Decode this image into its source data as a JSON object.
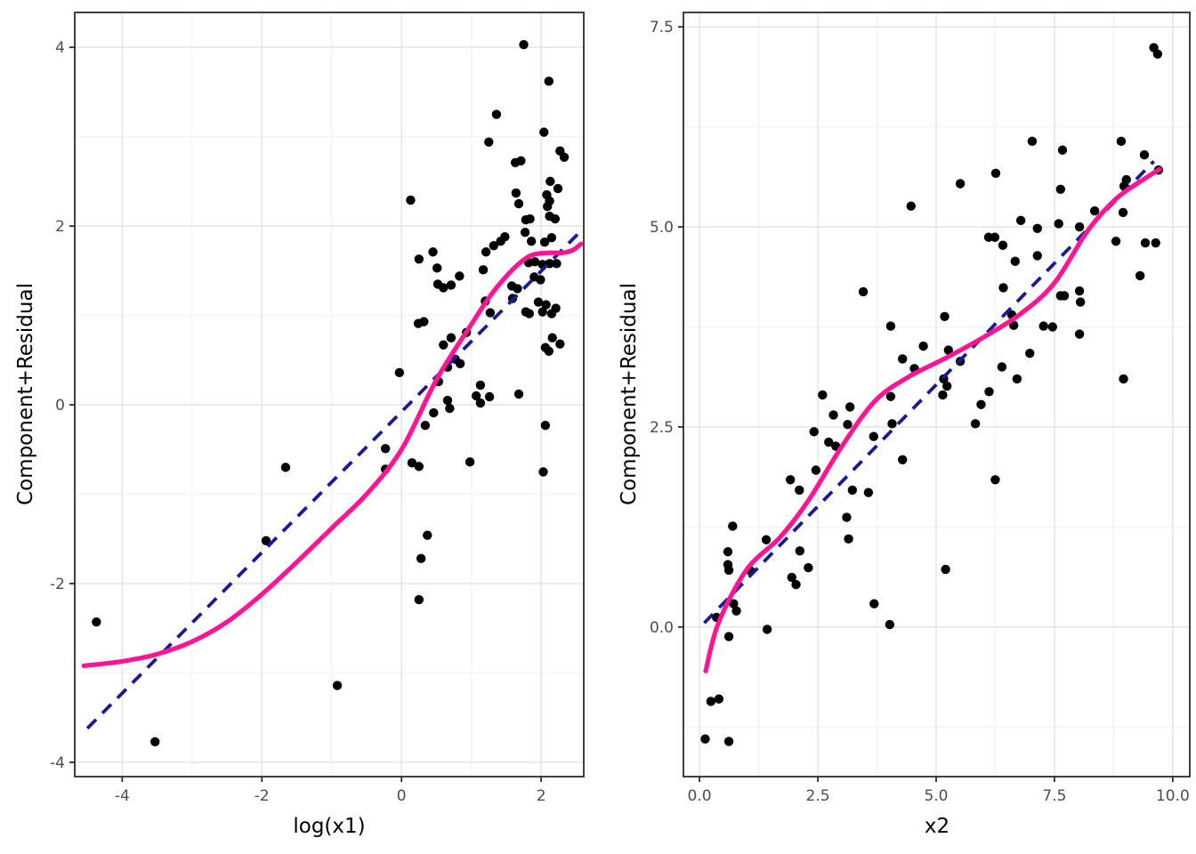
{
  "figure": {
    "background": "#FFFFFF",
    "panel_background": "#FFFFFF",
    "panel_border_color": "#2b2b2b",
    "grid_major_color": "#E4E4E4",
    "grid_minor_color": "#F2F2F2",
    "point_color": "#000000",
    "linear_line_color": "#1A1A99",
    "smooth_line_color": "#FF1493",
    "tick_mark_color": "#2b2b2b",
    "tick_label_color": "#4d4d4d",
    "axis_title_color": "#000000"
  },
  "chart_data": [
    {
      "type": "scatter",
      "title": "",
      "xlabel": "log(x1)",
      "ylabel": "Component+Residual",
      "xlim": [
        -4.68,
        2.61
      ],
      "ylim": [
        -4.16,
        4.39
      ],
      "grid": true,
      "legend_position": "none",
      "x_ticks": [
        -4,
        -2,
        0,
        2
      ],
      "x_tick_labels": [
        "-4",
        "-2",
        "0",
        "2"
      ],
      "y_ticks": [
        -4,
        -2,
        0,
        2,
        4
      ],
      "y_tick_labels": [
        "-4",
        "-2",
        "0",
        "2",
        "4"
      ],
      "series": [
        {
          "name": "partial-residual-points",
          "kind": "points",
          "points": [
            [
              1.75,
              4.03
            ],
            [
              2.11,
              3.62
            ],
            [
              1.36,
              3.25
            ],
            [
              2.04,
              3.05
            ],
            [
              1.25,
              2.94
            ],
            [
              2.27,
              2.84
            ],
            [
              2.33,
              2.77
            ],
            [
              1.71,
              2.73
            ],
            [
              1.63,
              2.71
            ],
            [
              2.13,
              2.5
            ],
            [
              2.24,
              2.42
            ],
            [
              1.64,
              2.37
            ],
            [
              2.08,
              2.35
            ],
            [
              0.13,
              2.29
            ],
            [
              2.12,
              2.28
            ],
            [
              1.68,
              2.25
            ],
            [
              2.09,
              2.22
            ],
            [
              2.12,
              2.11
            ],
            [
              1.84,
              2.08
            ],
            [
              2.2,
              2.08
            ],
            [
              1.78,
              2.07
            ],
            [
              1.77,
              1.93
            ],
            [
              1.48,
              1.88
            ],
            [
              2.15,
              1.87
            ],
            [
              1.86,
              1.83
            ],
            [
              1.42,
              1.83
            ],
            [
              2.05,
              1.82
            ],
            [
              1.32,
              1.78
            ],
            [
              1.21,
              1.71
            ],
            [
              0.45,
              1.71
            ],
            [
              0.25,
              1.63
            ],
            [
              1.82,
              1.59
            ],
            [
              1.91,
              1.6
            ],
            [
              2.02,
              1.57
            ],
            [
              2.12,
              1.58
            ],
            [
              2.22,
              1.58
            ],
            [
              0.51,
              1.53
            ],
            [
              1.17,
              1.51
            ],
            [
              1.9,
              1.43
            ],
            [
              0.83,
              1.44
            ],
            [
              1.99,
              1.4
            ],
            [
              0.52,
              1.35
            ],
            [
              0.71,
              1.34
            ],
            [
              1.58,
              1.33
            ],
            [
              0.6,
              1.31
            ],
            [
              1.66,
              1.3
            ],
            [
              1.2,
              1.16
            ],
            [
              1.59,
              1.19
            ],
            [
              1.96,
              1.15
            ],
            [
              2.07,
              1.12
            ],
            [
              2.21,
              1.08
            ],
            [
              1.78,
              1.04
            ],
            [
              1.27,
              1.03
            ],
            [
              1.83,
              1.02
            ],
            [
              2.02,
              1.04
            ],
            [
              2.15,
              1.02
            ],
            [
              0.32,
              0.93
            ],
            [
              0.24,
              0.91
            ],
            [
              0.93,
              0.81
            ],
            [
              2.16,
              0.75
            ],
            [
              0.71,
              0.75
            ],
            [
              2.27,
              0.68
            ],
            [
              0.6,
              0.67
            ],
            [
              2.06,
              0.64
            ],
            [
              2.11,
              0.6
            ],
            [
              0.77,
              0.51
            ],
            [
              0.84,
              0.46
            ],
            [
              0.66,
              0.42
            ],
            [
              -0.03,
              0.36
            ],
            [
              0.53,
              0.26
            ],
            [
              1.13,
              0.22
            ],
            [
              1.68,
              0.12
            ],
            [
              1.07,
              0.1
            ],
            [
              1.26,
              0.09
            ],
            [
              0.66,
              0.05
            ],
            [
              1.13,
              0.02
            ],
            [
              0.69,
              -0.04
            ],
            [
              0.46,
              -0.09
            ],
            [
              0.34,
              -0.23
            ],
            [
              2.06,
              -0.23
            ],
            [
              -0.23,
              -0.49
            ],
            [
              0.98,
              -0.64
            ],
            [
              0.15,
              -0.65
            ],
            [
              0.25,
              -0.69
            ],
            [
              -1.66,
              -0.7
            ],
            [
              -0.23,
              -0.72
            ],
            [
              2.03,
              -0.75
            ],
            [
              0.37,
              -1.46
            ],
            [
              -1.94,
              -1.52
            ],
            [
              0.28,
              -1.72
            ],
            [
              0.25,
              -2.18
            ],
            [
              -4.37,
              -2.43
            ],
            [
              -0.92,
              -3.14
            ],
            [
              -3.53,
              -3.77
            ]
          ]
        },
        {
          "name": "linear-component-dashed",
          "kind": "line",
          "dashed": true,
          "points": [
            [
              -4.5,
              -3.62
            ],
            [
              2.55,
              1.93
            ]
          ]
        },
        {
          "name": "loess-smooth",
          "kind": "smooth",
          "dashed": false,
          "points": [
            [
              -4.55,
              -2.92
            ],
            [
              -4.0,
              -2.87
            ],
            [
              -3.5,
              -2.79
            ],
            [
              -3.0,
              -2.65
            ],
            [
              -2.5,
              -2.43
            ],
            [
              -2.0,
              -2.12
            ],
            [
              -1.5,
              -1.76
            ],
            [
              -1.0,
              -1.38
            ],
            [
              -0.5,
              -1.0
            ],
            [
              0.0,
              -0.5
            ],
            [
              0.5,
              0.28
            ],
            [
              1.0,
              0.9
            ],
            [
              1.3,
              1.25
            ],
            [
              1.6,
              1.52
            ],
            [
              1.85,
              1.67
            ],
            [
              2.1,
              1.7
            ],
            [
              2.3,
              1.7
            ],
            [
              2.45,
              1.73
            ],
            [
              2.57,
              1.8
            ]
          ]
        }
      ]
    },
    {
      "type": "scatter",
      "title": "",
      "xlabel": "x2",
      "ylabel": "Component+Residual",
      "xlim": [
        -0.34,
        10.36
      ],
      "ylim": [
        -1.87,
        7.68
      ],
      "grid": true,
      "legend_position": "none",
      "x_ticks": [
        0,
        2.5,
        5,
        7.5,
        10
      ],
      "x_tick_labels": [
        "0.0",
        "2.5",
        "5.0",
        "7.5",
        "10.0"
      ],
      "y_ticks": [
        0,
        2.5,
        5,
        7.5
      ],
      "y_tick_labels": [
        "0.0",
        "2.5",
        "5.0",
        "7.5"
      ],
      "series": [
        {
          "name": "partial-residual-points",
          "kind": "points",
          "points": [
            [
              9.6,
              7.24
            ],
            [
              9.68,
              7.16
            ],
            [
              7.03,
              6.07
            ],
            [
              8.91,
              6.07
            ],
            [
              7.67,
              5.96
            ],
            [
              9.4,
              5.9
            ],
            [
              9.7,
              5.71
            ],
            [
              6.26,
              5.67
            ],
            [
              9.02,
              5.59
            ],
            [
              5.51,
              5.54
            ],
            [
              8.97,
              5.51
            ],
            [
              7.63,
              5.47
            ],
            [
              4.47,
              5.26
            ],
            [
              8.35,
              5.2
            ],
            [
              8.95,
              5.18
            ],
            [
              6.79,
              5.08
            ],
            [
              7.59,
              5.04
            ],
            [
              8.03,
              5.0
            ],
            [
              7.14,
              4.98
            ],
            [
              6.11,
              4.87
            ],
            [
              6.24,
              4.87
            ],
            [
              8.8,
              4.82
            ],
            [
              9.42,
              4.8
            ],
            [
              9.64,
              4.8
            ],
            [
              6.41,
              4.77
            ],
            [
              7.14,
              4.64
            ],
            [
              6.67,
              4.57
            ],
            [
              9.31,
              4.39
            ],
            [
              6.42,
              4.24
            ],
            [
              8.03,
              4.2
            ],
            [
              3.46,
              4.19
            ],
            [
              7.63,
              4.14
            ],
            [
              7.71,
              4.14
            ],
            [
              8.05,
              4.06
            ],
            [
              6.6,
              3.9
            ],
            [
              5.18,
              3.88
            ],
            [
              6.64,
              3.77
            ],
            [
              4.04,
              3.76
            ],
            [
              7.27,
              3.76
            ],
            [
              7.46,
              3.75
            ],
            [
              8.03,
              3.66
            ],
            [
              4.73,
              3.51
            ],
            [
              5.26,
              3.46
            ],
            [
              6.98,
              3.42
            ],
            [
              4.29,
              3.35
            ],
            [
              5.51,
              3.32
            ],
            [
              6.39,
              3.25
            ],
            [
              4.54,
              3.23
            ],
            [
              6.71,
              3.1
            ],
            [
              5.16,
              3.1
            ],
            [
              8.96,
              3.1
            ],
            [
              5.23,
              3.01
            ],
            [
              6.12,
              2.94
            ],
            [
              2.6,
              2.9
            ],
            [
              4.04,
              2.88
            ],
            [
              5.14,
              2.9
            ],
            [
              5.95,
              2.78
            ],
            [
              3.18,
              2.75
            ],
            [
              2.83,
              2.65
            ],
            [
              5.83,
              2.54
            ],
            [
              4.07,
              2.54
            ],
            [
              3.13,
              2.53
            ],
            [
              2.42,
              2.44
            ],
            [
              3.68,
              2.38
            ],
            [
              2.73,
              2.31
            ],
            [
              2.88,
              2.26
            ],
            [
              4.29,
              2.09
            ],
            [
              2.46,
              1.96
            ],
            [
              1.92,
              1.84
            ],
            [
              6.25,
              1.84
            ],
            [
              2.11,
              1.71
            ],
            [
              3.23,
              1.71
            ],
            [
              3.57,
              1.68
            ],
            [
              3.11,
              1.37
            ],
            [
              0.7,
              1.26
            ],
            [
              1.41,
              1.09
            ],
            [
              3.15,
              1.1
            ],
            [
              2.12,
              0.95
            ],
            [
              0.6,
              0.94
            ],
            [
              0.6,
              0.78
            ],
            [
              2.3,
              0.74
            ],
            [
              0.62,
              0.71
            ],
            [
              5.2,
              0.72
            ],
            [
              1.08,
              0.7
            ],
            [
              1.95,
              0.62
            ],
            [
              2.04,
              0.53
            ],
            [
              0.72,
              0.29
            ],
            [
              3.69,
              0.29
            ],
            [
              0.78,
              0.2
            ],
            [
              0.36,
              0.12
            ],
            [
              4.02,
              0.03
            ],
            [
              1.43,
              -0.03
            ],
            [
              0.62,
              -0.12
            ],
            [
              0.41,
              -0.9
            ],
            [
              0.24,
              -0.93
            ],
            [
              0.12,
              -1.4
            ],
            [
              0.62,
              -1.43
            ]
          ]
        },
        {
          "name": "linear-component-dashed",
          "kind": "line",
          "dashed": true,
          "points": [
            [
              0.1,
              0.05
            ],
            [
              9.6,
              5.82
            ]
          ]
        },
        {
          "name": "loess-smooth",
          "kind": "smooth",
          "dashed": false,
          "points": [
            [
              0.13,
              -0.55
            ],
            [
              0.4,
              0.05
            ],
            [
              1.0,
              0.72
            ],
            [
              1.7,
              1.12
            ],
            [
              2.3,
              1.58
            ],
            [
              3.0,
              2.25
            ],
            [
              3.7,
              2.82
            ],
            [
              4.4,
              3.12
            ],
            [
              5.2,
              3.36
            ],
            [
              6.0,
              3.62
            ],
            [
              6.8,
              3.92
            ],
            [
              7.5,
              4.3
            ],
            [
              8.2,
              4.95
            ],
            [
              8.8,
              5.35
            ],
            [
              9.4,
              5.6
            ],
            [
              9.72,
              5.72
            ]
          ]
        }
      ]
    }
  ]
}
